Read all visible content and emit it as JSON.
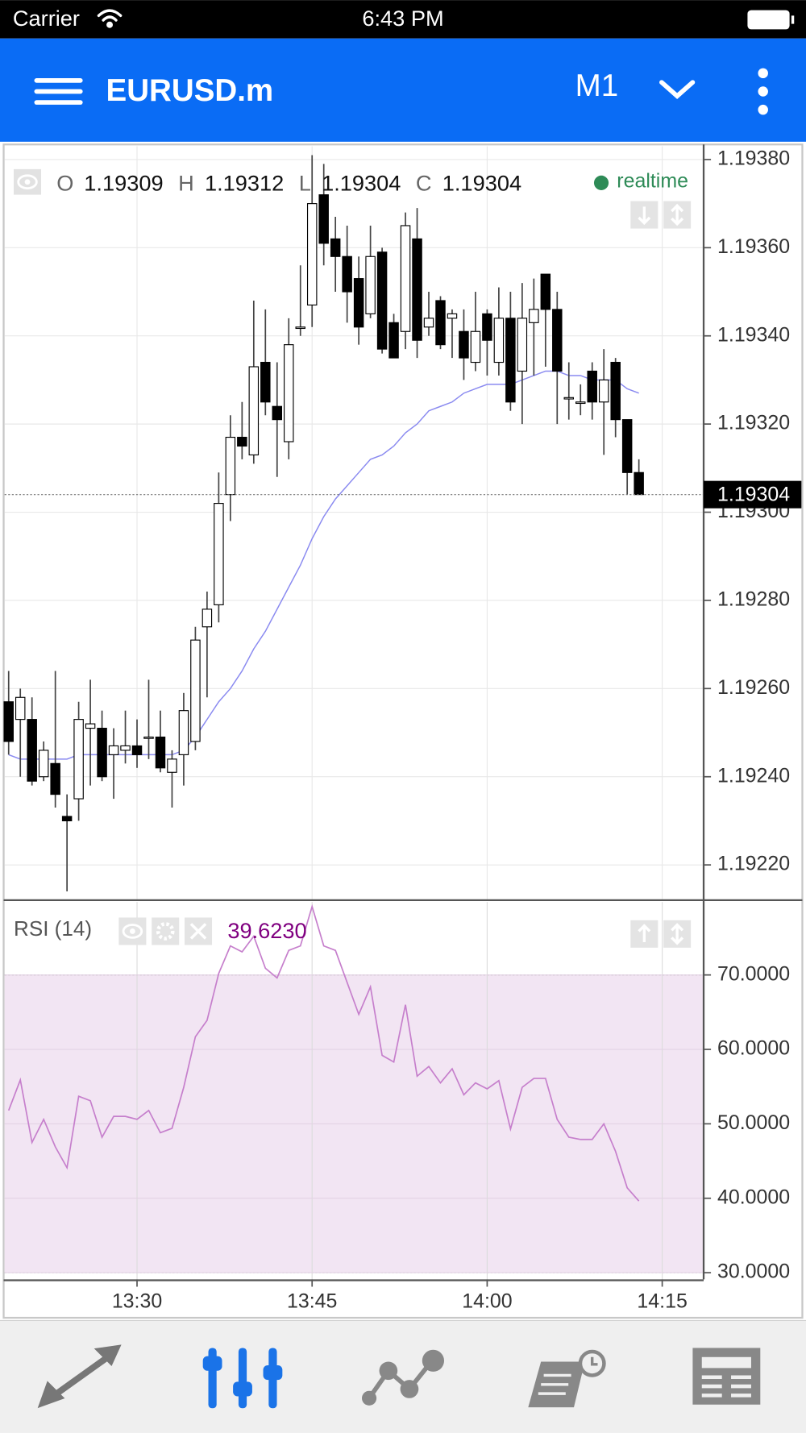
{
  "status_bar": {
    "carrier": "Carrier",
    "time": "6:43 PM"
  },
  "header": {
    "symbol": "EURUSD.m",
    "timeframe": "M1"
  },
  "status_label": "realtime",
  "chart_data": [
    {
      "type": "candlestick",
      "ohlc_labels": [
        "O",
        "H",
        "L",
        "C"
      ],
      "x": [
        "13:19",
        "13:20",
        "13:21",
        "13:22",
        "13:23",
        "13:24",
        "13:25",
        "13:26",
        "13:27",
        "13:28",
        "13:29",
        "13:30",
        "13:31",
        "13:32",
        "13:33",
        "13:34",
        "13:35",
        "13:36",
        "13:37",
        "13:38",
        "13:39",
        "13:40",
        "13:41",
        "13:42",
        "13:43",
        "13:44",
        "13:45",
        "13:46",
        "13:47",
        "13:48",
        "13:49",
        "13:50",
        "13:51",
        "13:52",
        "13:53",
        "13:54",
        "13:55",
        "13:56",
        "13:57",
        "13:58",
        "13:59",
        "14:00",
        "14:01",
        "14:02",
        "14:03",
        "14:04",
        "14:05",
        "14:06",
        "14:07",
        "14:08",
        "14:09",
        "14:10",
        "14:11",
        "14:12",
        "14:13"
      ],
      "open": [
        1.19257,
        1.19253,
        1.19253,
        1.1924,
        1.19243,
        1.19231,
        1.19235,
        1.19251,
        1.19251,
        1.19245,
        1.19246,
        1.19247,
        1.19249,
        1.19249,
        1.19241,
        1.19245,
        1.19248,
        1.19274,
        1.19279,
        1.19304,
        1.19317,
        1.19313,
        1.19334,
        1.19324,
        1.19316,
        1.19342,
        1.19347,
        1.19372,
        1.19362,
        1.19358,
        1.19353,
        1.19345,
        1.19359,
        1.19343,
        1.19341,
        1.19362,
        1.19342,
        1.19348,
        1.19344,
        1.19341,
        1.19334,
        1.19345,
        1.19334,
        1.19344,
        1.19332,
        1.19343,
        1.19354,
        1.19346,
        1.19326,
        1.19325,
        1.19332,
        1.19325,
        1.19334,
        1.19321,
        1.19309
      ],
      "high": [
        1.19264,
        1.1926,
        1.19258,
        1.19248,
        1.19264,
        1.19236,
        1.19257,
        1.19262,
        1.19255,
        1.19251,
        1.19255,
        1.19253,
        1.19262,
        1.19255,
        1.19246,
        1.19259,
        1.19274,
        1.19282,
        1.19309,
        1.19322,
        1.19325,
        1.19348,
        1.19346,
        1.19334,
        1.19344,
        1.19356,
        1.19381,
        1.19379,
        1.19367,
        1.19365,
        1.19358,
        1.19365,
        1.1936,
        1.19345,
        1.19368,
        1.19369,
        1.1935,
        1.19349,
        1.19346,
        1.19346,
        1.1935,
        1.19346,
        1.19351,
        1.1935,
        1.19352,
        1.19353,
        1.19354,
        1.1935,
        1.19334,
        1.19329,
        1.19334,
        1.19337,
        1.19335,
        1.19321,
        1.19312
      ],
      "low": [
        1.19245,
        1.1924,
        1.19238,
        1.19239,
        1.19233,
        1.19214,
        1.1923,
        1.19238,
        1.19239,
        1.19235,
        1.19243,
        1.19242,
        1.19244,
        1.19241,
        1.19233,
        1.19238,
        1.19246,
        1.19258,
        1.19275,
        1.19298,
        1.19312,
        1.19311,
        1.19322,
        1.19308,
        1.19312,
        1.1934,
        1.19342,
        1.19356,
        1.1935,
        1.19343,
        1.19338,
        1.19344,
        1.19336,
        1.19335,
        1.19337,
        1.19335,
        1.1934,
        1.19337,
        1.19335,
        1.1933,
        1.19332,
        1.19331,
        1.19331,
        1.19323,
        1.1932,
        1.19331,
        1.19333,
        1.1932,
        1.19321,
        1.19322,
        1.19321,
        1.19313,
        1.19317,
        1.19304,
        1.19304
      ],
      "close": [
        1.19248,
        1.19258,
        1.19239,
        1.19246,
        1.19236,
        1.1923,
        1.19253,
        1.19252,
        1.1924,
        1.19247,
        1.19247,
        1.19245,
        1.19249,
        1.19242,
        1.19244,
        1.19255,
        1.19271,
        1.19278,
        1.19302,
        1.19317,
        1.19315,
        1.19333,
        1.19325,
        1.19321,
        1.19338,
        1.19342,
        1.1937,
        1.19361,
        1.19358,
        1.1935,
        1.19342,
        1.19358,
        1.19337,
        1.19335,
        1.19365,
        1.19339,
        1.19344,
        1.19338,
        1.19345,
        1.19335,
        1.19341,
        1.19339,
        1.19344,
        1.19325,
        1.19344,
        1.19346,
        1.19346,
        1.19332,
        1.19326,
        1.19325,
        1.19325,
        1.1933,
        1.19321,
        1.19309,
        1.19304
      ],
      "up_color": "#ffffff",
      "down_color": "#000000",
      "ma_values": [
        1.19245,
        1.19244,
        1.19244,
        1.19244,
        1.19244,
        1.19244,
        1.19245,
        1.19245,
        1.19245,
        1.19245,
        1.19245,
        1.19245,
        1.19245,
        1.19245,
        1.19245,
        1.19246,
        1.19249,
        1.19253,
        1.19257,
        1.1926,
        1.19264,
        1.19269,
        1.19273,
        1.19278,
        1.19283,
        1.19288,
        1.19294,
        1.19299,
        1.19303,
        1.19306,
        1.19309,
        1.19312,
        1.19313,
        1.19315,
        1.19318,
        1.1932,
        1.19323,
        1.19324,
        1.19325,
        1.19327,
        1.19328,
        1.19329,
        1.19329,
        1.19329,
        1.1933,
        1.19331,
        1.19332,
        1.19332,
        1.19331,
        1.19331,
        1.1933,
        1.1933,
        1.1933,
        1.19328,
        1.19327
      ],
      "ma_color": "#8a8af0",
      "xlim": [
        "13:18:39",
        "14:18:33"
      ],
      "xticks": [
        "13:30",
        "13:45",
        "14:00",
        "14:15"
      ],
      "ylim": [
        1.19212,
        1.19383
      ],
      "yticks": [
        {
          "value": 1.1938,
          "label": "1.19380"
        },
        {
          "value": 1.1936,
          "label": "1.19360"
        },
        {
          "value": 1.1934,
          "label": "1.19340"
        },
        {
          "value": 1.1932,
          "label": "1.19320"
        },
        {
          "value": 1.193,
          "label": "1.19300"
        },
        {
          "value": 1.1928,
          "label": "1.19280"
        },
        {
          "value": 1.1926,
          "label": "1.19260"
        },
        {
          "value": 1.1924,
          "label": "1.19240"
        },
        {
          "value": 1.1922,
          "label": "1.19220"
        }
      ],
      "grid": true
    },
    {
      "type": "line",
      "title": "RSI (14)",
      "values": [
        51.8,
        55.9,
        47.5,
        50.6,
        46.9,
        44.1,
        53.7,
        53.1,
        48.2,
        51.0,
        51.0,
        50.6,
        51.8,
        48.8,
        49.4,
        54.9,
        61.7,
        63.9,
        70.2,
        73.9,
        73.1,
        75.2,
        70.9,
        69.6,
        73.3,
        73.9,
        79.2,
        73.9,
        73.3,
        69.0,
        64.7,
        68.4,
        59.2,
        58.3,
        66.0,
        56.4,
        57.7,
        55.5,
        57.4,
        53.9,
        55.5,
        54.7,
        55.8,
        49.3,
        54.9,
        56.1,
        56.1,
        50.6,
        48.2,
        47.9,
        47.9,
        50.0,
        46.3,
        41.4,
        39.623
      ],
      "last_value_label": "39.6230",
      "color": "#c67fcc",
      "band": [
        30,
        70
      ],
      "band_color": "#f2e5f3",
      "ylim": [
        29.1,
        79.8
      ],
      "yticks": [
        {
          "value": 70,
          "label": "70.0000"
        },
        {
          "value": 60,
          "label": "60.0000"
        },
        {
          "value": 50,
          "label": "50.0000"
        },
        {
          "value": 40,
          "label": "40.0000"
        },
        {
          "value": 30,
          "label": "30.0000"
        }
      ],
      "grid": true
    }
  ]
}
